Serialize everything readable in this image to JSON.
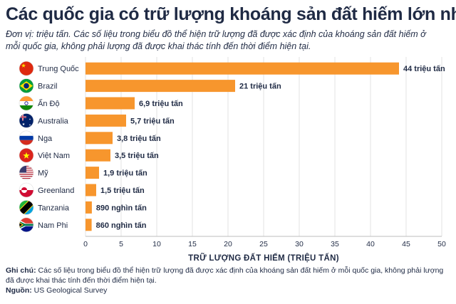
{
  "title": "Các quốc gia có trữ lượng khoáng sản đất hiếm lớn nhất",
  "subtitle": "Đơn vị: triệu tấn. Các số liệu trong biểu đồ thể hiện trữ lượng đã được xác định của khoáng sản đất hiếm ở mỗi quốc gia, không phải lượng đã được khai thác tính đến thời điểm hiện tại.",
  "footer": {
    "note_label": "Ghi chú:",
    "note_text": "Các số liệu trong biểu đồ thể hiện trữ lượng đã được xác định của khoáng sản đất hiếm ở mỗi quốc gia, không phải lượng đã được khai thác tính đến thời điểm hiện tại.",
    "source_label": "Nguồn:",
    "source_text": "US Geological Survey"
  },
  "colors": {
    "bar": "#f7962d",
    "text": "#1f2a44",
    "grid": "#e3e3e3"
  },
  "chart_data": {
    "type": "bar",
    "orientation": "horizontal",
    "title": "Các quốc gia có trữ lượng khoáng sản đất hiếm lớn nhất",
    "xlabel": "TRỮ LƯỢNG ĐẤT HIẾM (TRIỆU TẤN)",
    "ylabel": "",
    "xlim": [
      0,
      50
    ],
    "xticks": [
      0,
      5,
      10,
      15,
      20,
      25,
      30,
      35,
      40,
      45,
      50
    ],
    "grid": true,
    "categories": [
      "Trung Quốc",
      "Brazil",
      "Ấn Độ",
      "Australia",
      "Nga",
      "Việt Nam",
      "Mỹ",
      "Greenland",
      "Tanzania",
      "Nam Phi"
    ],
    "flags": [
      "china-flag-icon",
      "brazil-flag-icon",
      "india-flag-icon",
      "australia-flag-icon",
      "russia-flag-icon",
      "vietnam-flag-icon",
      "usa-flag-icon",
      "greenland-flag-icon",
      "tanzania-flag-icon",
      "south-africa-flag-icon"
    ],
    "values": [
      44,
      21,
      6.9,
      5.7,
      3.8,
      3.5,
      1.9,
      1.5,
      0.89,
      0.86
    ],
    "data_labels": [
      "44 triệu tấn",
      "21 triệu tấn",
      "6,9 triệu tấn",
      "5,7 triệu tấn",
      "3,8 triệu tấn",
      "3,5 triệu tấn",
      "1,9 triệu tấn",
      "1,5 triệu tấn",
      "890 nghìn tấn",
      "860 nghìn tấn"
    ]
  }
}
